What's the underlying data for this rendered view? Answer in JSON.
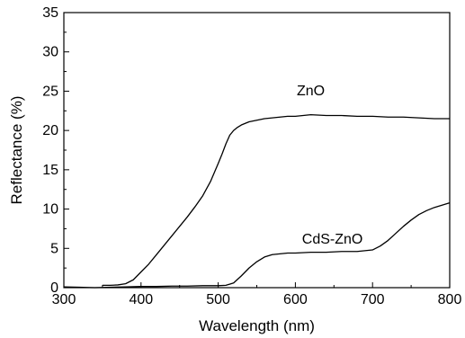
{
  "chart_data": {
    "type": "line",
    "xlabel": "Wavelength (nm)",
    "ylabel": "Reflectance (%)",
    "xlim": [
      300,
      800
    ],
    "ylim": [
      0,
      35
    ],
    "x_ticks": [
      "300",
      "400",
      "500",
      "600",
      "700",
      "800"
    ],
    "y_ticks": [
      "0",
      "5",
      "10",
      "15",
      "20",
      "25",
      "30",
      "35"
    ],
    "grid": false,
    "legend": "none",
    "series": [
      {
        "name": "ZnO",
        "color": "#000000",
        "x": [
          350,
          360,
          370,
          380,
          390,
          400,
          410,
          420,
          430,
          440,
          450,
          460,
          470,
          480,
          490,
          500,
          505,
          510,
          515,
          520,
          525,
          530,
          535,
          540,
          550,
          560,
          570,
          580,
          590,
          600,
          610,
          620,
          640,
          660,
          680,
          700,
          720,
          740,
          760,
          780,
          800
        ],
        "y": [
          0.3,
          0.3,
          0.35,
          0.5,
          1.0,
          2.0,
          3.0,
          4.2,
          5.4,
          6.6,
          7.8,
          9.0,
          10.3,
          11.7,
          13.5,
          15.8,
          17.0,
          18.3,
          19.4,
          20.0,
          20.4,
          20.7,
          20.9,
          21.1,
          21.3,
          21.5,
          21.6,
          21.7,
          21.8,
          21.8,
          21.9,
          22.0,
          21.9,
          21.9,
          21.8,
          21.8,
          21.7,
          21.7,
          21.6,
          21.5,
          21.5
        ]
      },
      {
        "name": "CdS-ZnO",
        "color": "#000000",
        "x": [
          300,
          320,
          340,
          360,
          380,
          400,
          420,
          440,
          460,
          480,
          500,
          510,
          520,
          530,
          540,
          550,
          560,
          570,
          580,
          590,
          600,
          620,
          640,
          660,
          680,
          700,
          710,
          720,
          730,
          740,
          750,
          760,
          770,
          780,
          790,
          800
        ],
        "y": [
          0.1,
          0.05,
          0.0,
          0.05,
          0.1,
          0.15,
          0.15,
          0.2,
          0.2,
          0.25,
          0.25,
          0.3,
          0.6,
          1.5,
          2.5,
          3.3,
          3.9,
          4.2,
          4.3,
          4.4,
          4.4,
          4.5,
          4.5,
          4.6,
          4.6,
          4.8,
          5.3,
          6.0,
          6.9,
          7.8,
          8.6,
          9.3,
          9.8,
          10.2,
          10.5,
          10.8
        ]
      }
    ],
    "annotations": [
      {
        "text": "ZnO",
        "x": 620,
        "y": 24.5
      },
      {
        "text": "CdS-ZnO",
        "x": 648,
        "y": 5.6
      }
    ]
  }
}
